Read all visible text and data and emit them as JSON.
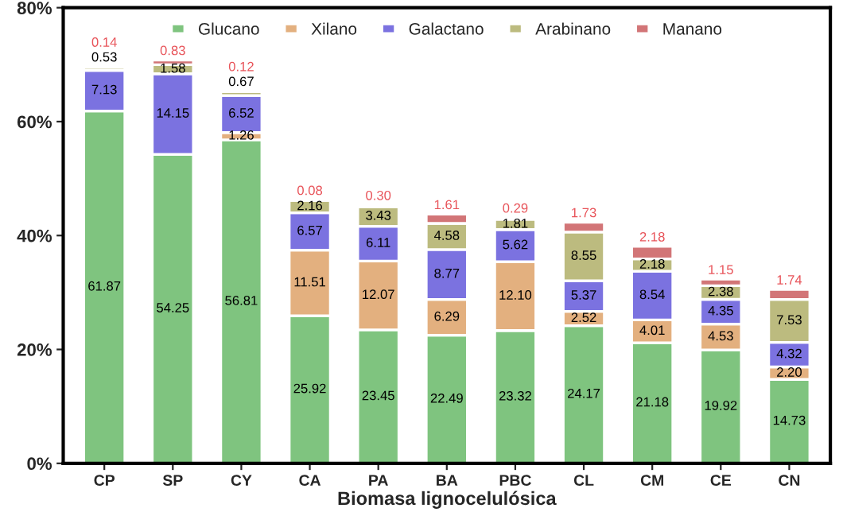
{
  "chart_data": {
    "type": "bar",
    "stacked": true,
    "xlabel": "Biomasa lignocelulósica",
    "categories": [
      "CP",
      "SP",
      "CY",
      "CA",
      "PA",
      "BA",
      "PBC",
      "CL",
      "CM",
      "CE",
      "CN"
    ],
    "series": [
      {
        "name": "Glucano",
        "color": "#7fc47f",
        "values": [
          61.87,
          54.25,
          56.81,
          25.92,
          23.45,
          22.49,
          23.32,
          24.17,
          21.18,
          19.92,
          14.73
        ],
        "value_labels": [
          "61.87",
          "54.25",
          "56.81",
          "25.92",
          "23.45",
          "22.49",
          "23.32",
          "24.17",
          "21.18",
          "19.92",
          "14.73"
        ]
      },
      {
        "name": "Xilano",
        "color": "#e3b07f",
        "values": [
          null,
          null,
          1.26,
          11.51,
          12.07,
          6.29,
          12.1,
          2.52,
          4.01,
          4.53,
          2.2
        ],
        "value_labels": [
          null,
          null,
          "1.26",
          "11.51",
          "12.07",
          "6.29",
          "12.10",
          "2.52",
          "4.01",
          "4.53",
          "2.20"
        ]
      },
      {
        "name": "Galactano",
        "color": "#7b72e0",
        "values": [
          7.13,
          14.15,
          6.52,
          6.57,
          6.11,
          8.77,
          5.62,
          5.37,
          8.54,
          4.35,
          4.32
        ],
        "value_labels": [
          "7.13",
          "14.15",
          "6.52",
          "6.57",
          "6.11",
          "8.77",
          "5.62",
          "5.37",
          "8.54",
          "4.35",
          "4.32"
        ]
      },
      {
        "name": "Arabinano",
        "color": "#bcbb7f",
        "values": [
          0.53,
          1.58,
          0.67,
          2.16,
          3.43,
          4.58,
          1.81,
          8.55,
          2.18,
          2.38,
          7.53
        ],
        "value_labels": [
          "0.53",
          "1.58",
          "0.67",
          "2.16",
          "3.43",
          "4.58",
          "1.81",
          "8.55",
          "2.18",
          "2.38",
          "7.53"
        ]
      },
      {
        "name": "Manano",
        "color": "#d27577",
        "values": [
          0.14,
          0.83,
          0.12,
          0.08,
          0.3,
          1.61,
          0.29,
          1.73,
          2.18,
          1.15,
          1.74
        ],
        "value_labels": [
          "0.14",
          "0.83",
          "0.12",
          "0.08",
          "0.30",
          "1.61",
          "0.29",
          "1.73",
          "2.18",
          "1.15",
          "1.74"
        ]
      }
    ],
    "ylim": [
      0,
      80
    ],
    "yticks": [
      {
        "value": 0,
        "label": "0%"
      },
      {
        "value": 20,
        "label": "20%"
      },
      {
        "value": 40,
        "label": "40%"
      },
      {
        "value": 60,
        "label": "60%"
      },
      {
        "value": 80,
        "label": "80%"
      }
    ],
    "grid": false,
    "legend": "top"
  }
}
